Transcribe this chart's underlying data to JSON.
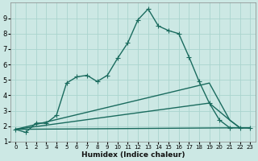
{
  "xlabel": "Humidex (Indice chaleur)",
  "xlim": [
    -0.5,
    23.5
  ],
  "ylim": [
    1,
    10
  ],
  "yticks": [
    1,
    2,
    3,
    4,
    5,
    6,
    7,
    8,
    9
  ],
  "xticks": [
    0,
    1,
    2,
    3,
    4,
    5,
    6,
    7,
    8,
    9,
    10,
    11,
    12,
    13,
    14,
    15,
    16,
    17,
    18,
    19,
    20,
    21,
    22,
    23
  ],
  "bg_color": "#cce8e4",
  "grid_color": "#aad4ce",
  "line_color": "#1a6b5e",
  "line_width": 1.0,
  "marker": "+",
  "markersize": 4,
  "line1_x": [
    0,
    1,
    2,
    3,
    4,
    5,
    6,
    7,
    8,
    9,
    10,
    11,
    12,
    13,
    14,
    15,
    16,
    17,
    18,
    19,
    20,
    21,
    22,
    23
  ],
  "line1_y": [
    1.8,
    1.6,
    2.2,
    2.2,
    2.7,
    4.8,
    5.2,
    5.3,
    4.9,
    5.3,
    6.4,
    7.4,
    8.9,
    9.6,
    8.5,
    8.2,
    8.0,
    6.5,
    4.9,
    3.5,
    2.4,
    1.9,
    1.9,
    1.9
  ],
  "line2_x": [
    0,
    19,
    21,
    22,
    23
  ],
  "line2_y": [
    1.8,
    4.8,
    2.4,
    1.9,
    1.9
  ],
  "line3_x": [
    0,
    19,
    21,
    22,
    23
  ],
  "line3_y": [
    1.8,
    3.5,
    2.4,
    1.9,
    1.9
  ],
  "line4_x": [
    0,
    22,
    23
  ],
  "line4_y": [
    1.8,
    1.9,
    1.9
  ]
}
